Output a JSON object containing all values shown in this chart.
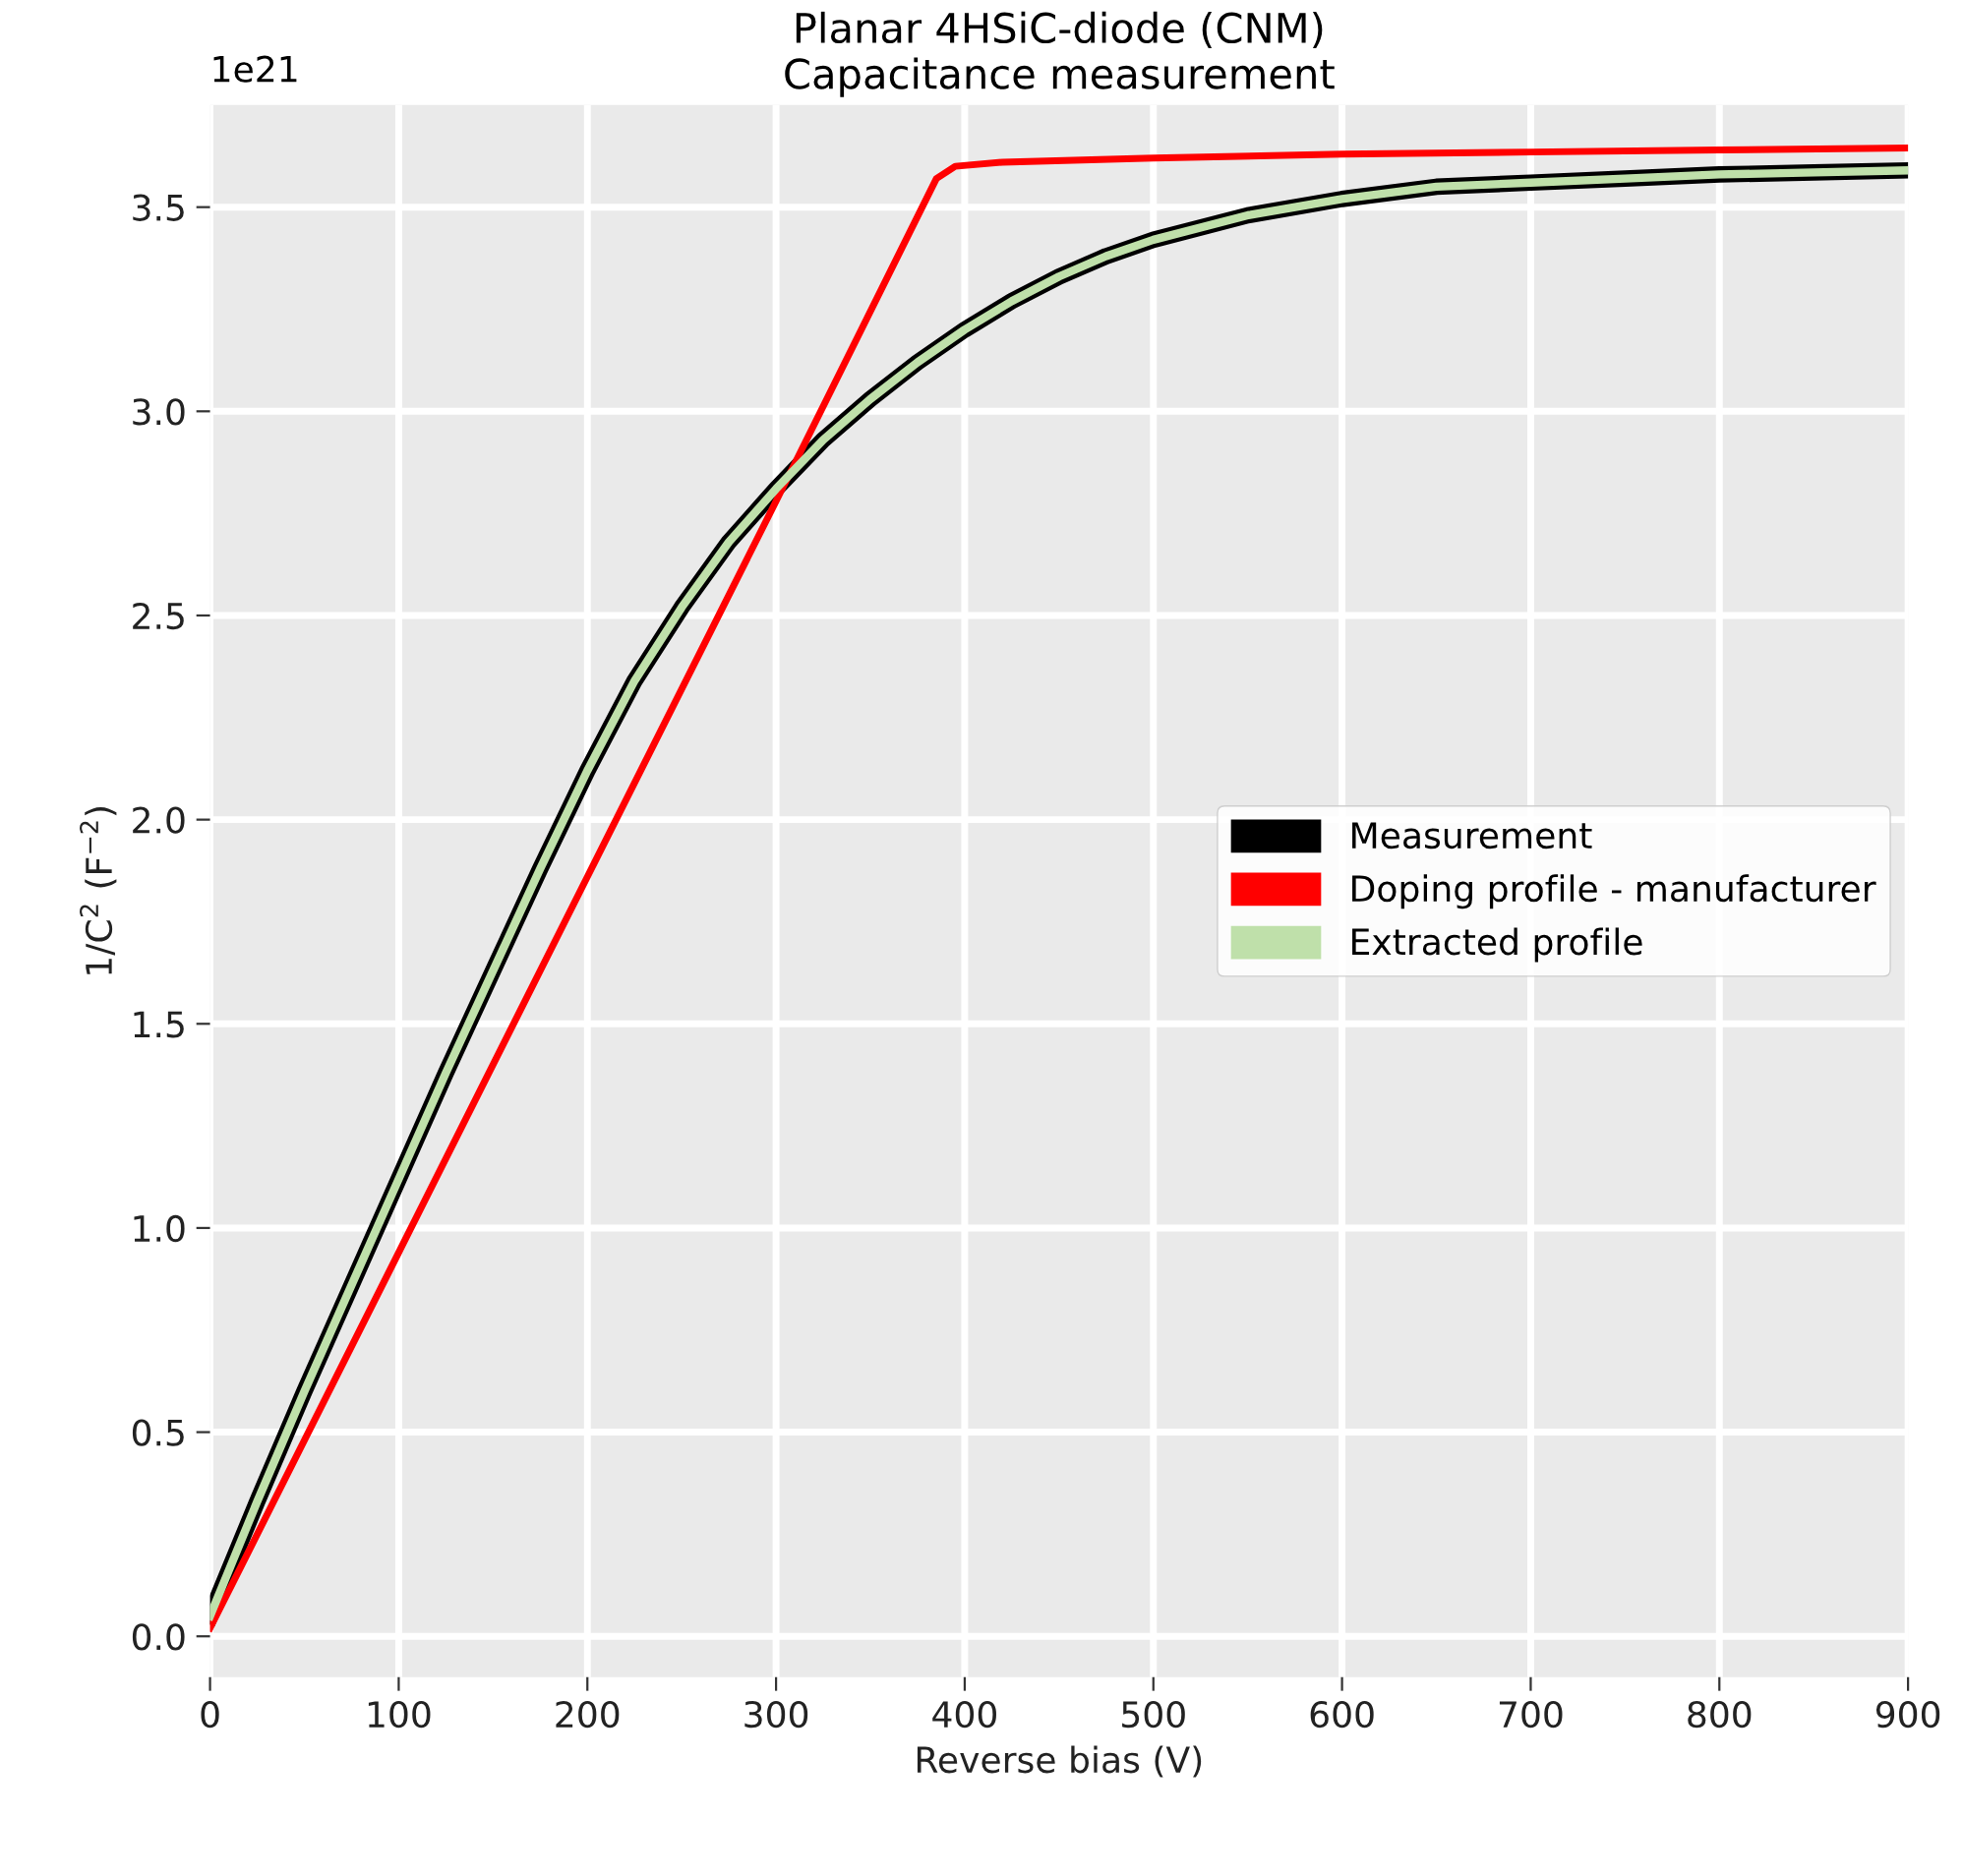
{
  "chart_data": {
    "type": "line",
    "title": "Planar 4HSiC-diode (CNM)\nCapacitance measurement",
    "xlabel": "Reverse bias (V)",
    "ylabel": "1/C$^{2}$ (F$^{−2}$)",
    "annotations": [
      "1e21"
    ],
    "xlim": [
      0,
      900
    ],
    "xticks": [
      0,
      100,
      200,
      300,
      400,
      500,
      600,
      700,
      800,
      900
    ],
    "ylim": [
      -0.1,
      3.75
    ],
    "yticks": [
      {
        "value": 0,
        "label": "0.0"
      },
      0.5,
      {
        "value": 1,
        "label": "1.0"
      },
      1.5,
      {
        "value": 2,
        "label": "2.0"
      },
      2.5,
      {
        "value": 3,
        "label": "3.0"
      },
      3.5
    ],
    "grid": true,
    "legend": "right",
    "marker": "none",
    "line_style": "solid",
    "series": [
      {
        "name": "Measurement",
        "color": "#000000",
        "x": [
          0,
          25,
          50,
          75,
          100,
          125,
          150,
          175,
          200,
          225,
          250,
          275,
          300,
          325,
          350,
          375,
          400,
          425,
          450,
          475,
          500,
          550,
          600,
          650,
          700,
          750,
          800,
          850,
          900
        ],
        "values": [
          0.05,
          0.33,
          0.6,
          0.86,
          1.12,
          1.38,
          1.63,
          1.88,
          2.12,
          2.34,
          2.52,
          2.68,
          2.81,
          2.93,
          3.03,
          3.12,
          3.2,
          3.27,
          3.33,
          3.38,
          3.42,
          3.48,
          3.52,
          3.55,
          3.56,
          3.57,
          3.58,
          3.585,
          3.59
        ]
      },
      {
        "name": "Doping profile - manufacturer",
        "color": "#ff0000",
        "x": [
          0,
          100,
          200,
          300,
          385,
          395,
          420,
          500,
          600,
          700,
          800,
          900
        ],
        "values": [
          0.02,
          0.94,
          1.86,
          2.78,
          3.57,
          3.6,
          3.61,
          3.62,
          3.63,
          3.635,
          3.64,
          3.645
        ]
      },
      {
        "name": "Extracted profile",
        "color": "#bfe0aa",
        "x": [
          0,
          25,
          50,
          75,
          100,
          125,
          150,
          175,
          200,
          225,
          250,
          275,
          300,
          325,
          350,
          375,
          400,
          425,
          450,
          475,
          500,
          550,
          600,
          650,
          700,
          750,
          800,
          850,
          900
        ],
        "values": [
          0.05,
          0.33,
          0.6,
          0.86,
          1.12,
          1.38,
          1.63,
          1.88,
          2.12,
          2.34,
          2.52,
          2.68,
          2.81,
          2.93,
          3.03,
          3.12,
          3.2,
          3.27,
          3.33,
          3.38,
          3.42,
          3.48,
          3.52,
          3.55,
          3.56,
          3.57,
          3.58,
          3.585,
          3.59
        ]
      }
    ]
  }
}
